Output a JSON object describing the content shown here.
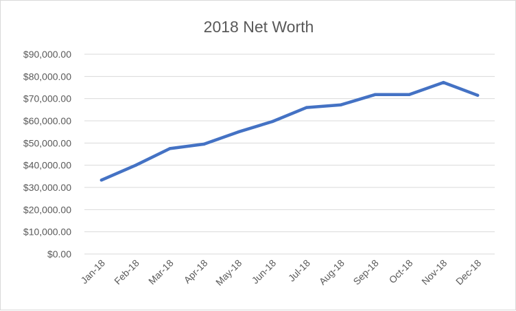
{
  "chart_data": {
    "type": "line",
    "title": "2018 Net Worth",
    "categories": [
      "Jan-18",
      "Feb-18",
      "Mar-18",
      "Apr-18",
      "May-18",
      "Jun-18",
      "Jul-18",
      "Aug-18",
      "Sep-18",
      "Oct-18",
      "Nov-18",
      "Dec-18"
    ],
    "series": [
      {
        "values": [
          33300,
          40000,
          47500,
          49500,
          55000,
          59700,
          66000,
          67200,
          71800,
          71800,
          77300,
          71500
        ]
      }
    ],
    "ylim": [
      0,
      90000
    ],
    "ytick_step": 10000,
    "ytick_labels": [
      "$0.00",
      "$10,000.00",
      "$20,000.00",
      "$30,000.00",
      "$40,000.00",
      "$50,000.00",
      "$60,000.00",
      "$70,000.00",
      "$80,000.00",
      "$90,000.00"
    ],
    "grid": true,
    "legend": "none",
    "line_color": "#4472C4",
    "grid_color": "#d9d9d9"
  }
}
